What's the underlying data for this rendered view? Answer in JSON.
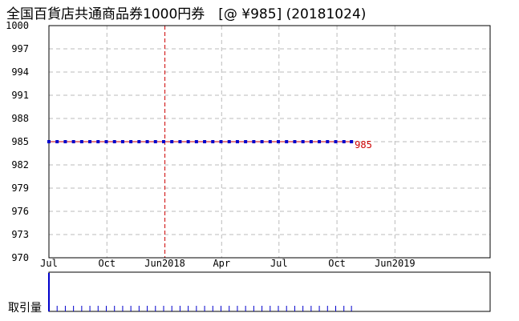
{
  "title": "全国百貨店共通商品券1000円券　[@ ¥985] (20181024)",
  "volume_label": "取引量",
  "last_price_label": "985",
  "colors": {
    "price_line": "#cc0000",
    "price_marker": "#0000cc",
    "grid": "#bbbbbb",
    "year_divider": "#cc0000",
    "volume_bar": "#0000cc"
  },
  "chart_data": {
    "type": "line",
    "title": "全国百貨店共通商品券1000円券　[@ ¥985] (20181024)",
    "xlabel": "",
    "ylabel": "",
    "ylim": [
      970,
      1000
    ],
    "yticks": [
      1000,
      997,
      994,
      991,
      988,
      985,
      982,
      979,
      976,
      973,
      970
    ],
    "xlim": [
      "2017-07-01",
      "2019-06-01"
    ],
    "xticks": [
      {
        "label": "Jul",
        "date": "2017-07-01"
      },
      {
        "label": "Oct",
        "date": "2017-10-01"
      },
      {
        "label": "Jun2018",
        "date": "2018-01-01"
      },
      {
        "label": "Apr",
        "date": "2018-04-01"
      },
      {
        "label": "Jul",
        "date": "2018-07-01"
      },
      {
        "label": "Oct",
        "date": "2018-10-01"
      },
      {
        "label": "Jun2019",
        "date": "2019-01-01"
      }
    ],
    "year_divider_date": "2018-01-01",
    "grid": true,
    "series": [
      {
        "values": [
          {
            "x": "2017-07-01",
            "y": 985
          },
          {
            "x": "2017-07-14",
            "y": 985
          },
          {
            "x": "2017-07-27",
            "y": 985
          },
          {
            "x": "2017-08-09",
            "y": 985
          },
          {
            "x": "2017-08-22",
            "y": 985
          },
          {
            "x": "2017-09-04",
            "y": 985
          },
          {
            "x": "2017-09-17",
            "y": 985
          },
          {
            "x": "2017-09-30",
            "y": 985
          },
          {
            "x": "2017-10-13",
            "y": 985
          },
          {
            "x": "2017-10-26",
            "y": 985
          },
          {
            "x": "2017-11-08",
            "y": 985
          },
          {
            "x": "2017-11-21",
            "y": 985
          },
          {
            "x": "2017-12-04",
            "y": 985
          },
          {
            "x": "2017-12-17",
            "y": 985
          },
          {
            "x": "2017-12-30",
            "y": 985
          },
          {
            "x": "2018-01-12",
            "y": 985
          },
          {
            "x": "2018-01-25",
            "y": 985
          },
          {
            "x": "2018-02-07",
            "y": 985
          },
          {
            "x": "2018-02-20",
            "y": 985
          },
          {
            "x": "2018-03-05",
            "y": 985
          },
          {
            "x": "2018-03-18",
            "y": 985
          },
          {
            "x": "2018-03-31",
            "y": 985
          },
          {
            "x": "2018-04-13",
            "y": 985
          },
          {
            "x": "2018-04-26",
            "y": 985
          },
          {
            "x": "2018-05-09",
            "y": 985
          },
          {
            "x": "2018-05-22",
            "y": 985
          },
          {
            "x": "2018-06-04",
            "y": 985
          },
          {
            "x": "2018-06-17",
            "y": 985
          },
          {
            "x": "2018-06-30",
            "y": 985
          },
          {
            "x": "2018-07-13",
            "y": 985
          },
          {
            "x": "2018-07-26",
            "y": 985
          },
          {
            "x": "2018-08-08",
            "y": 985
          },
          {
            "x": "2018-08-21",
            "y": 985
          },
          {
            "x": "2018-09-03",
            "y": 985
          },
          {
            "x": "2018-09-16",
            "y": 985
          },
          {
            "x": "2018-09-29",
            "y": 985
          },
          {
            "x": "2018-10-12",
            "y": 985
          },
          {
            "x": "2018-10-24",
            "y": 985
          }
        ]
      }
    ],
    "volume": {
      "label": "取引量",
      "values": [
        {
          "x": "2017-07-01",
          "v": 10
        },
        {
          "x": "2017-07-14",
          "v": 1
        },
        {
          "x": "2017-07-27",
          "v": 1
        },
        {
          "x": "2017-08-09",
          "v": 1
        },
        {
          "x": "2017-08-22",
          "v": 1
        },
        {
          "x": "2017-09-04",
          "v": 1
        },
        {
          "x": "2017-09-17",
          "v": 1
        },
        {
          "x": "2017-09-30",
          "v": 1
        },
        {
          "x": "2017-10-13",
          "v": 1
        },
        {
          "x": "2017-10-26",
          "v": 1
        },
        {
          "x": "2017-11-08",
          "v": 1
        },
        {
          "x": "2017-11-21",
          "v": 1
        },
        {
          "x": "2017-12-04",
          "v": 1
        },
        {
          "x": "2017-12-17",
          "v": 1
        },
        {
          "x": "2017-12-30",
          "v": 1
        },
        {
          "x": "2018-01-12",
          "v": 1
        },
        {
          "x": "2018-01-25",
          "v": 1
        },
        {
          "x": "2018-02-07",
          "v": 1
        },
        {
          "x": "2018-02-20",
          "v": 1
        },
        {
          "x": "2018-03-05",
          "v": 1
        },
        {
          "x": "2018-03-18",
          "v": 1
        },
        {
          "x": "2018-03-31",
          "v": 1
        },
        {
          "x": "2018-04-13",
          "v": 1
        },
        {
          "x": "2018-04-26",
          "v": 1
        },
        {
          "x": "2018-05-09",
          "v": 1
        },
        {
          "x": "2018-05-22",
          "v": 1
        },
        {
          "x": "2018-06-04",
          "v": 1
        },
        {
          "x": "2018-06-17",
          "v": 1
        },
        {
          "x": "2018-06-30",
          "v": 1
        },
        {
          "x": "2018-07-13",
          "v": 1
        },
        {
          "x": "2018-07-26",
          "v": 1
        },
        {
          "x": "2018-08-08",
          "v": 1
        },
        {
          "x": "2018-08-21",
          "v": 1
        },
        {
          "x": "2018-09-03",
          "v": 1
        },
        {
          "x": "2018-09-16",
          "v": 1
        },
        {
          "x": "2018-09-29",
          "v": 1
        },
        {
          "x": "2018-10-12",
          "v": 1
        },
        {
          "x": "2018-10-24",
          "v": 1
        }
      ]
    }
  }
}
